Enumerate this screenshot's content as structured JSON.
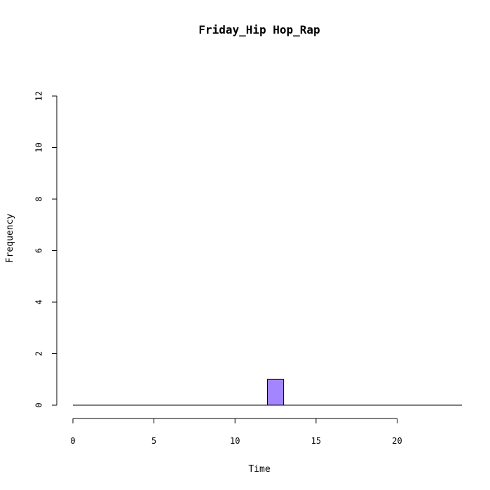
{
  "chart_data": {
    "type": "bar",
    "title": "Friday_Hip Hop_Rap",
    "xlabel": "Time",
    "ylabel": "Frequency",
    "x_ticks": [
      "0",
      "5",
      "10",
      "15",
      "20"
    ],
    "y_ticks": [
      "0",
      "2",
      "4",
      "6",
      "8",
      "10",
      "12"
    ],
    "xlim": [
      0,
      24
    ],
    "ylim": [
      0,
      12
    ],
    "bin_edges": [
      0,
      1,
      2,
      3,
      4,
      5,
      6,
      7,
      8,
      9,
      10,
      11,
      12,
      13,
      14,
      15,
      16,
      17,
      18,
      19,
      20,
      21,
      22,
      23,
      24
    ],
    "values": [
      0,
      0,
      0,
      0,
      0,
      0,
      0,
      0,
      0,
      0,
      0,
      0,
      1,
      0,
      0,
      0,
      0,
      0,
      0,
      0,
      0,
      0,
      0,
      0
    ],
    "bar_color": "#a385ff",
    "grid": false
  }
}
